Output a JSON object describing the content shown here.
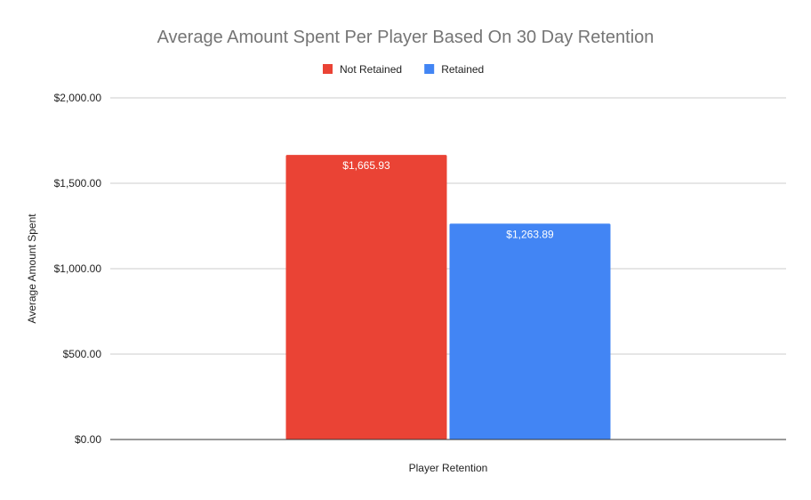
{
  "chart_data": {
    "type": "bar",
    "title": "Average Amount Spent Per Player Based On 30 Day Retention",
    "xlabel": "Player Retention",
    "ylabel": "Average Amount Spent",
    "categories": [
      ""
    ],
    "series": [
      {
        "name": "Not Retained",
        "color": "#ea4335",
        "values": [
          1665.93
        ],
        "label": "$1,665.93"
      },
      {
        "name": "Retained",
        "color": "#4285f4",
        "values": [
          1263.89
        ],
        "label": "$1,263.89"
      }
    ],
    "ylim": [
      0,
      2000
    ],
    "yticks": [
      {
        "value": 0,
        "label": "$0.00"
      },
      {
        "value": 500,
        "label": "$500.00"
      },
      {
        "value": 1000,
        "label": "$1,000.00"
      },
      {
        "value": 1500,
        "label": "$1,500.00"
      },
      {
        "value": 2000,
        "label": "$2,000.00"
      }
    ],
    "grid": true,
    "legend_position": "top"
  }
}
